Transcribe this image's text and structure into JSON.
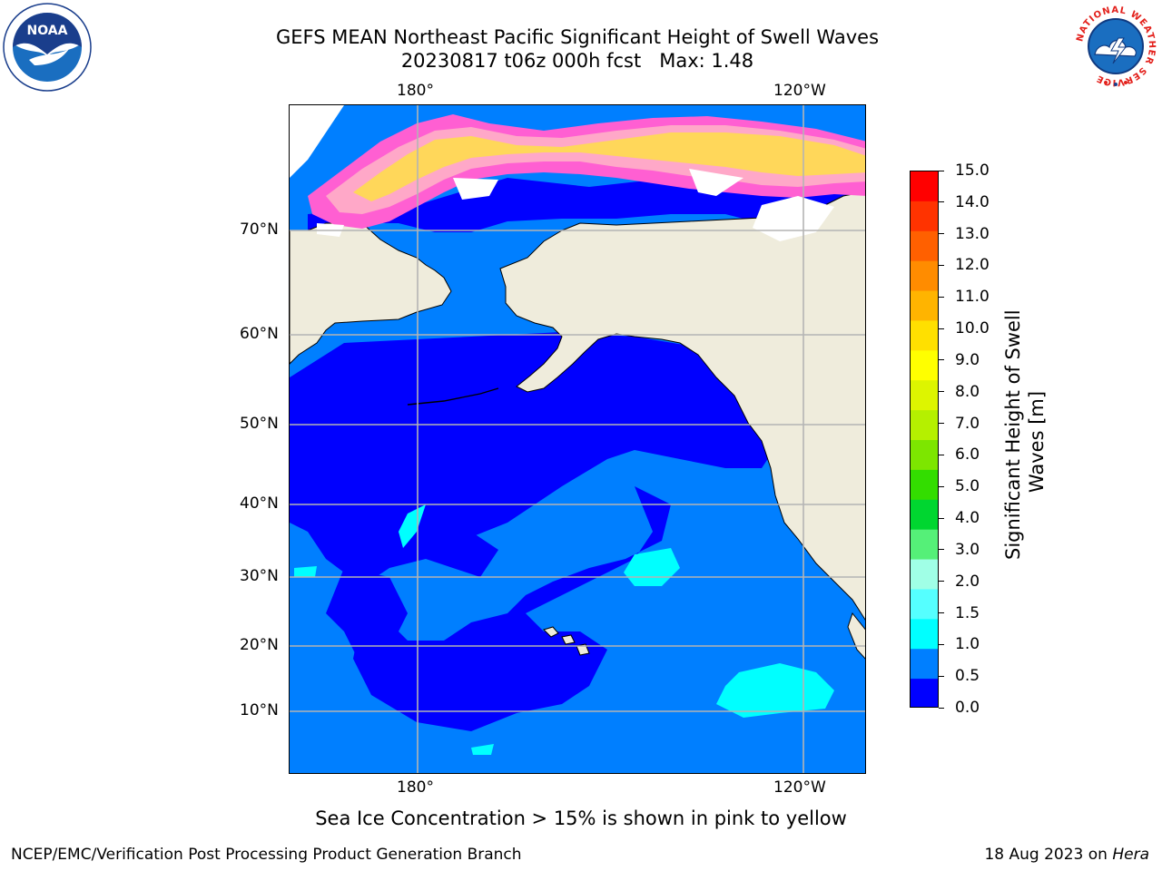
{
  "title": {
    "line1": "GEFS MEAN Northeast Pacific Significant Height of Swell Waves",
    "line2": "20230817 t06z 000h fcst   Max: 1.48"
  },
  "map": {
    "lon_ticks": [
      "180°",
      "120°W"
    ],
    "lat_ticks": [
      "70°N",
      "60°N",
      "50°N",
      "40°N",
      "30°N",
      "20°N",
      "10°N"
    ],
    "colors": {
      "land": "#efecdc",
      "ice_free_water": "#ffffff",
      "swell_0_0.5": "#0000ff",
      "swell_0.5_1.0": "#007fff",
      "swell_1.0_1.5": "#00ffff",
      "ice_low": "#ff5fd2",
      "ice_mid": "#ffa8c8",
      "ice_high": "#ffd75a",
      "grid": "#b4b4b4"
    }
  },
  "colorbar": {
    "title_line1": "Significant Height of Swell",
    "title_line2": "Waves [m]",
    "labels": [
      "15.0",
      "14.0",
      "13.0",
      "12.0",
      "11.0",
      "10.0",
      "9.0",
      "8.0",
      "7.0",
      "6.0",
      "5.0",
      "4.0",
      "3.0",
      "2.0",
      "1.5",
      "1.0",
      "0.5",
      "0.0"
    ],
    "colors": [
      "#ff0000",
      "#ff3300",
      "#ff6000",
      "#ff8c00",
      "#ffb400",
      "#ffe000",
      "#ffff00",
      "#ddf500",
      "#b5f000",
      "#7de600",
      "#33dd00",
      "#00d630",
      "#55f078",
      "#a0ffe6",
      "#55ffff",
      "#00ffff",
      "#007fff",
      "#0000ff"
    ]
  },
  "note": "Sea Ice Concentration > 15% is shown in pink to yellow",
  "footer": {
    "left": "NCEP/EMC/Verification Post Processing Product Generation Branch",
    "right_date": "18 Aug 2023 on ",
    "right_machine": "Hera"
  },
  "logos": {
    "noaa": "NOAA",
    "nws_ring": "NATIONAL WEATHER SERVICE"
  }
}
